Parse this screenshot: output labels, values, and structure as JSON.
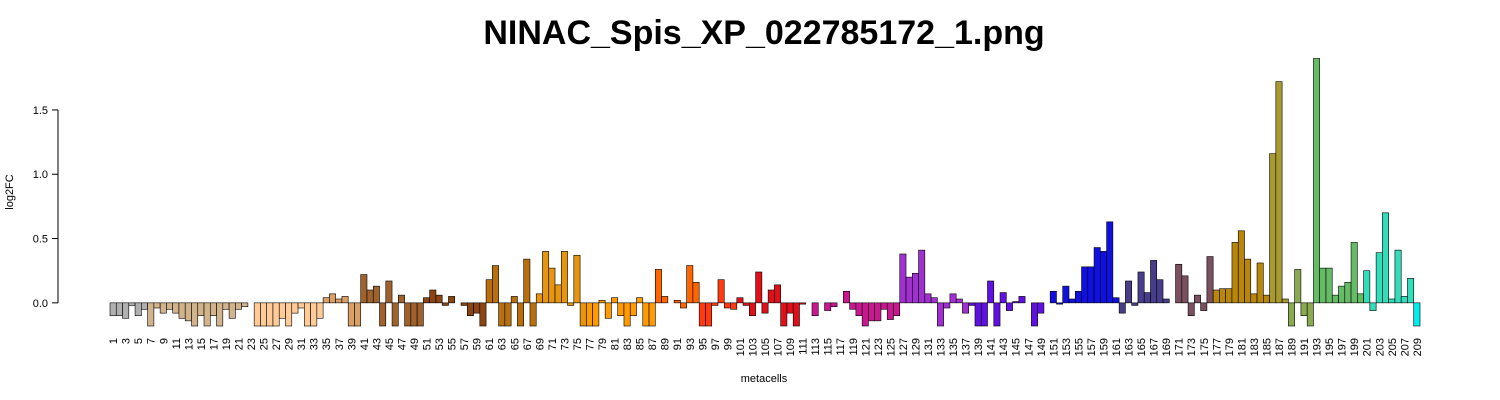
{
  "chart_data": {
    "type": "bar",
    "title": "NINAC_Spis_XP_022785172_1.png",
    "x_label": "metacells",
    "y_label": "log2FC",
    "categories": [
      "1",
      null,
      "3",
      null,
      "5",
      null,
      "7",
      null,
      "9",
      null,
      "11",
      null,
      "13",
      null,
      "15",
      null,
      "17",
      null,
      "19",
      null,
      "21",
      null,
      "23",
      null,
      "25",
      null,
      "27",
      null,
      "29",
      null,
      "31",
      null,
      "33",
      null,
      "35",
      null,
      "37",
      null,
      "39",
      null,
      "41",
      null,
      "43",
      null,
      "45",
      null,
      "47",
      null,
      "49",
      null,
      "51",
      null,
      "53",
      null,
      "55",
      null,
      "57",
      null,
      "59",
      null,
      "61",
      null,
      "63",
      null,
      "65",
      null,
      "67",
      null,
      "69",
      null,
      "71",
      null,
      "73",
      null,
      "75",
      null,
      "77",
      null,
      "79",
      null,
      "81",
      null,
      "83",
      null,
      "85",
      null,
      "87",
      null,
      "89",
      null,
      "91",
      null,
      "93",
      null,
      "95",
      null,
      "97",
      null,
      "99",
      null,
      "101",
      null,
      "103",
      null,
      "105",
      null,
      "107",
      null,
      "109",
      null,
      "111",
      null,
      "113",
      null,
      "115",
      null,
      "117",
      null,
      "119",
      null,
      "121",
      null,
      "123",
      null,
      "125",
      null,
      "127",
      null,
      "129",
      null,
      "131",
      null,
      "133",
      null,
      "135",
      null,
      "137",
      null,
      "139",
      null,
      "141",
      null,
      "143",
      null,
      "145",
      null,
      "147",
      null,
      "149",
      null,
      "151",
      null,
      "153",
      null,
      "155",
      null,
      "157",
      null,
      "159",
      null,
      "161",
      null,
      "163",
      null,
      "165",
      null,
      "167",
      null,
      "169",
      null,
      "171",
      null,
      "173",
      null,
      "175",
      null,
      "177",
      null,
      "179",
      null,
      "181",
      null,
      "183",
      null,
      "185",
      null,
      "187",
      null,
      "189",
      null,
      "191",
      null,
      "193",
      null,
      "195",
      null,
      "197",
      null,
      "199",
      null,
      "201",
      null,
      "203",
      null,
      "205",
      null,
      "207",
      null,
      "209"
    ],
    "values": [
      -0.1,
      -0.1,
      -0.12,
      -0.02,
      -0.1,
      -0.05,
      -0.18,
      -0.04,
      -0.08,
      -0.05,
      -0.08,
      -0.12,
      -0.14,
      -0.18,
      -0.1,
      -0.18,
      -0.1,
      -0.18,
      -0.05,
      -0.12,
      -0.05,
      -0.03,
      0,
      -0.18,
      -0.18,
      -0.18,
      -0.18,
      -0.12,
      -0.18,
      -0.08,
      -0.04,
      -0.18,
      -0.18,
      -0.12,
      0.04,
      0.07,
      0.03,
      0.05,
      -0.18,
      -0.18,
      0.22,
      0.1,
      0.13,
      -0.18,
      0.17,
      -0.18,
      0.06,
      -0.18,
      -0.18,
      -0.18,
      0.04,
      0.1,
      0.06,
      -0.02,
      0.05,
      0,
      -0.02,
      -0.1,
      -0.08,
      -0.18,
      0.18,
      0.29,
      -0.18,
      -0.18,
      0.05,
      -0.18,
      0.34,
      -0.18,
      0.07,
      0.4,
      0.27,
      0.14,
      0.4,
      -0.02,
      0.37,
      -0.18,
      -0.18,
      -0.18,
      0.02,
      -0.12,
      0.04,
      -0.1,
      -0.18,
      -0.1,
      0.04,
      -0.18,
      -0.18,
      0.26,
      0.05,
      0,
      0.02,
      -0.04,
      0.29,
      0.16,
      -0.18,
      -0.18,
      -0.02,
      0.18,
      -0.04,
      -0.05,
      0.04,
      -0.02,
      -0.1,
      0.24,
      -0.08,
      0.1,
      0.14,
      -0.18,
      -0.08,
      -0.18,
      -0.01,
      0,
      -0.1,
      0,
      -0.06,
      -0.03,
      0,
      0.09,
      -0.05,
      -0.1,
      -0.18,
      -0.14,
      -0.14,
      -0.05,
      -0.13,
      -0.1,
      0.38,
      0.2,
      0.23,
      0.41,
      0.07,
      0.04,
      -0.18,
      -0.04,
      0.07,
      0.03,
      -0.08,
      -0.02,
      -0.18,
      -0.18,
      0.17,
      -0.18,
      0.08,
      -0.06,
      0.01,
      0.05,
      0,
      -0.18,
      -0.08,
      0,
      0.09,
      -0.01,
      0.13,
      0.03,
      0.09,
      0.28,
      0.28,
      0.43,
      0.4,
      0.63,
      0.04,
      -0.08,
      0.17,
      -0.02,
      0.24,
      0.08,
      0.33,
      0.18,
      0.03,
      0,
      0.3,
      0.21,
      -0.1,
      0.06,
      -0.06,
      0.36,
      0.1,
      0.11,
      0.11,
      0.47,
      0.56,
      0.34,
      0.07,
      0.31,
      0.06,
      1.16,
      1.72,
      0.03,
      -0.18,
      0.26,
      -0.1,
      -0.18,
      1.9,
      0.27,
      0.27,
      0.06,
      0.13,
      0.16,
      0.47,
      0.07,
      0.25,
      -0.06,
      0.39,
      0.7,
      0.03,
      0.41,
      0.05,
      0.19,
      -0.18
    ],
    "colors": [
      "#b0b0b0",
      "#b0b0b0",
      "#b0b0b0",
      "#b0b0b0",
      "#b0b0b0",
      "#b0b0b0",
      "#d2b48c",
      "#d2b48c",
      "#d2b48c",
      "#d2b48c",
      "#d2b48c",
      "#d2b48c",
      "#d2b48c",
      "#d2b48c",
      "#d2b48c",
      "#d2b48c",
      "#d2b48c",
      "#d2b48c",
      "#d2b48c",
      "#d2b48c",
      "#d2b48c",
      "#d2b48c",
      "#ffcc99",
      "#ffcc99",
      "#ffcc99",
      "#ffcc99",
      "#ffcc99",
      "#ffcc99",
      "#ffcc99",
      "#ffcc99",
      "#ffcc99",
      "#ffcc99",
      "#ffcc99",
      "#ffcc99",
      "#d9a066",
      "#d9a066",
      "#d9a066",
      "#d9a066",
      "#d9a066",
      "#d9a066",
      "#a0622d",
      "#a0622d",
      "#a0622d",
      "#a0622d",
      "#a0622d",
      "#a0622d",
      "#a0622d",
      "#a0622d",
      "#a0622d",
      "#a0622d",
      "#8b4513",
      "#8b4513",
      "#8b4513",
      "#8b4513",
      "#8b4513",
      "#8b4513",
      "#8b4513",
      "#8b4513",
      "#8b4513",
      "#8b4513",
      "#b8700f",
      "#b8700f",
      "#b8700f",
      "#b8700f",
      "#b8700f",
      "#b8700f",
      "#b8700f",
      "#b8700f",
      "#e69510",
      "#e69510",
      "#e69510",
      "#e69510",
      "#e69510",
      "#e69510",
      "#e69510",
      "#e69510",
      "#ff9a00",
      "#ff9a00",
      "#ff9a00",
      "#ff9a00",
      "#ff9a00",
      "#ff9a00",
      "#ff9a00",
      "#ff9a00",
      "#ff9a00",
      "#ff9a00",
      "#ff9a00",
      "#ff6600",
      "#ff6600",
      "#ff6600",
      "#ff6600",
      "#ff6600",
      "#ff6600",
      "#ff6600",
      "#ff3a10",
      "#ff3a10",
      "#ff3a10",
      "#ff3a10",
      "#ff3a10",
      "#ff3a10",
      "#e0101a",
      "#e0101a",
      "#e0101a",
      "#e0101a",
      "#e0101a",
      "#e0101a",
      "#e0101a",
      "#e0101a",
      "#e0101a",
      "#e0101a",
      "#e0101a",
      "#e0101a",
      "#c81890",
      "#c81890",
      "#c81890",
      "#c81890",
      "#c81890",
      "#c81890",
      "#c81890",
      "#c81890",
      "#c81890",
      "#c81890",
      "#c81890",
      "#c81890",
      "#c81890",
      "#c81890",
      "#a030d0",
      "#a030d0",
      "#a030d0",
      "#a030d0",
      "#a030d0",
      "#a030d0",
      "#a030d0",
      "#a030d0",
      "#a030d0",
      "#a030d0",
      "#a030d0",
      "#6010e0",
      "#6010e0",
      "#6010e0",
      "#6010e0",
      "#6010e0",
      "#6010e0",
      "#6010e0",
      "#6010e0",
      "#6010e0",
      "#6010e0",
      "#6010e0",
      "#6010e0",
      "#6010e0",
      "#1010e0",
      "#1010e0",
      "#1010e0",
      "#1010e0",
      "#1010e0",
      "#1010e0",
      "#1010e0",
      "#1010e0",
      "#1010e0",
      "#1010e0",
      "#1010e0",
      "#483d8b",
      "#483d8b",
      "#483d8b",
      "#483d8b",
      "#483d8b",
      "#483d8b",
      "#483d8b",
      "#483d8b",
      "#483d8b",
      "#7a5060",
      "#7a5060",
      "#7a5060",
      "#7a5060",
      "#7a5060",
      "#7a5060",
      "#b8860b",
      "#b8860b",
      "#b8860b",
      "#b8860b",
      "#b8860b",
      "#b8860b",
      "#b8860b",
      "#b8860b",
      "#b8860b",
      "#a89a30",
      "#a89a30",
      "#a89a30",
      "#8aaa50",
      "#8aaa50",
      "#8aaa50",
      "#8aaa50",
      "#66bb66",
      "#66bb66",
      "#66bb66",
      "#66bb66",
      "#66bb66",
      "#66bb66",
      "#66bb66",
      "#66bb66",
      "#33ddbb",
      "#33ddbb",
      "#33ddbb",
      "#33ddbb",
      "#33ddbb",
      "#33ddbb",
      "#33ddbb",
      "#33ddbb",
      "#00eeee"
    ],
    "ylim": [
      -0.18,
      1.9
    ],
    "yticks": [
      {
        "value": 0,
        "label": "0.0"
      },
      0.5,
      {
        "value": 1,
        "label": "1.0"
      },
      1.5
    ],
    "grid": false
  }
}
